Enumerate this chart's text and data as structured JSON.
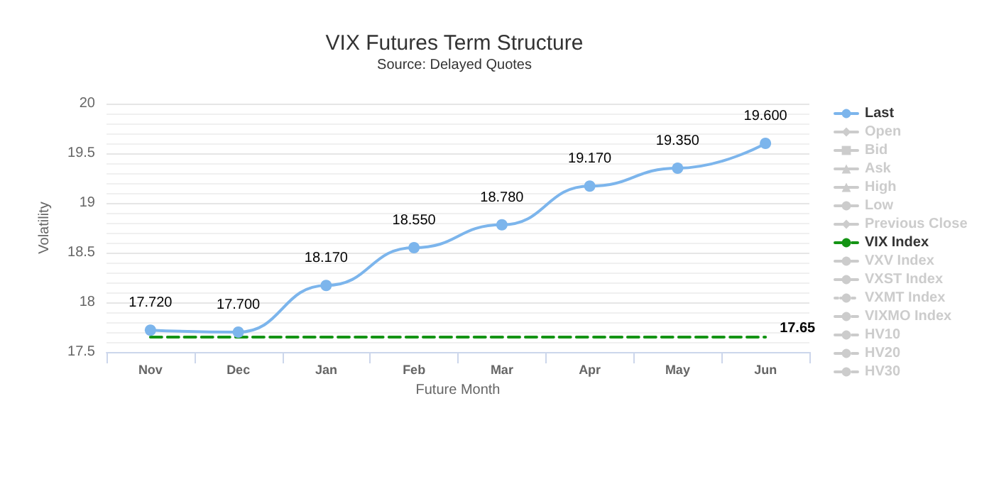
{
  "chart_data": {
    "type": "line",
    "title": "VIX Futures Term Structure",
    "subtitle": "Source: Delayed Quotes",
    "xlabel": "Future Month",
    "ylabel": "Volatility",
    "categories": [
      "Nov",
      "Dec",
      "Jan",
      "Feb",
      "Mar",
      "Apr",
      "May",
      "Jun"
    ],
    "series": [
      {
        "name": "Last",
        "color": "#7cb5ec",
        "marker": "circle",
        "line_style": "solid",
        "values": [
          17.72,
          17.7,
          18.17,
          18.55,
          18.78,
          19.17,
          19.35,
          19.6
        ],
        "value_labels": [
          "17.720",
          "17.700",
          "18.170",
          "18.550",
          "18.780",
          "19.170",
          "19.350",
          "19.600"
        ]
      },
      {
        "name": "Open",
        "color": "#cccccc",
        "marker": "diamond",
        "line_style": "solid",
        "values": [
          null,
          null,
          null,
          null,
          null,
          null,
          null,
          null
        ]
      },
      {
        "name": "Bid",
        "color": "#cccccc",
        "marker": "square",
        "line_style": "solid",
        "values": [
          null,
          null,
          null,
          null,
          null,
          null,
          null,
          null
        ]
      },
      {
        "name": "Ask",
        "color": "#cccccc",
        "marker": "triangle",
        "line_style": "solid",
        "values": [
          null,
          null,
          null,
          null,
          null,
          null,
          null,
          null
        ]
      },
      {
        "name": "High",
        "color": "#cccccc",
        "marker": "triangle",
        "line_style": "solid",
        "values": [
          null,
          null,
          null,
          null,
          null,
          null,
          null,
          null
        ]
      },
      {
        "name": "Low",
        "color": "#cccccc",
        "marker": "circle",
        "line_style": "solid",
        "values": [
          null,
          null,
          null,
          null,
          null,
          null,
          null,
          null
        ]
      },
      {
        "name": "Previous Close",
        "color": "#cccccc",
        "marker": "diamond",
        "line_style": "solid",
        "values": [
          null,
          null,
          null,
          null,
          null,
          null,
          null,
          null
        ]
      },
      {
        "name": "VIX Index",
        "color": "#149414",
        "marker": "none",
        "line_style": "dashed",
        "values": [
          17.65,
          17.65,
          17.65,
          17.65,
          17.65,
          17.65,
          17.65,
          17.65
        ],
        "value_labels": [
          null,
          null,
          null,
          null,
          null,
          null,
          null,
          "17.65"
        ]
      },
      {
        "name": "VXV Index",
        "color": "#cccccc",
        "marker": "none",
        "line_style": "solid",
        "values": [
          null,
          null,
          null,
          null,
          null,
          null,
          null,
          null
        ]
      },
      {
        "name": "VXST Index",
        "color": "#cccccc",
        "marker": "none",
        "line_style": "solid",
        "values": [
          null,
          null,
          null,
          null,
          null,
          null,
          null,
          null
        ]
      },
      {
        "name": "VXMT Index",
        "color": "#cccccc",
        "marker": "none",
        "line_style": "dotted",
        "values": [
          null,
          null,
          null,
          null,
          null,
          null,
          null,
          null
        ]
      },
      {
        "name": "VIXMO Index",
        "color": "#cccccc",
        "marker": "none",
        "line_style": "dashed",
        "values": [
          null,
          null,
          null,
          null,
          null,
          null,
          null,
          null
        ]
      },
      {
        "name": "HV10",
        "color": "#cccccc",
        "marker": "none",
        "line_style": "dashed",
        "values": [
          null,
          null,
          null,
          null,
          null,
          null,
          null,
          null
        ]
      },
      {
        "name": "HV20",
        "color": "#cccccc",
        "marker": "none",
        "line_style": "dashed",
        "values": [
          null,
          null,
          null,
          null,
          null,
          null,
          null,
          null
        ]
      },
      {
        "name": "HV30",
        "color": "#cccccc",
        "marker": "none",
        "line_style": "dashed",
        "values": [
          null,
          null,
          null,
          null,
          null,
          null,
          null,
          null
        ]
      }
    ],
    "ylim": [
      17.5,
      20
    ],
    "yticks": [
      17.5,
      18,
      18.5,
      19,
      19.5,
      20
    ],
    "grid": "y",
    "legend": "right"
  }
}
